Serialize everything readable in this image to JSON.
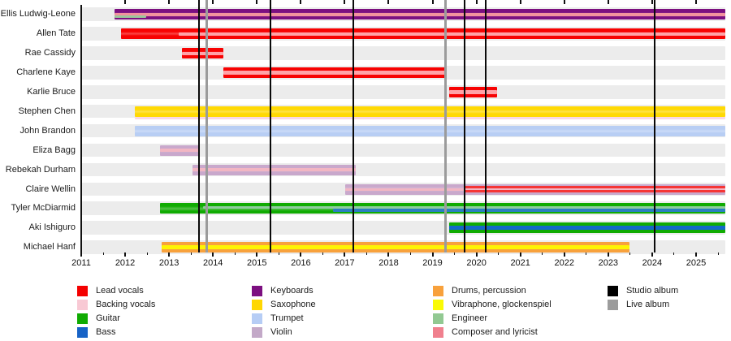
{
  "chart_data": {
    "type": "bar",
    "subtype": "band-membership-timeline",
    "title": "",
    "x_axis": {
      "min": 2011,
      "max": 2025.67,
      "year_labels": [
        2011,
        2012,
        2013,
        2014,
        2015,
        2016,
        2017,
        2018,
        2019,
        2020,
        2021,
        2022,
        2023,
        2024,
        2025
      ],
      "minor_tick_interval": 0.5,
      "grid": false
    },
    "albums": {
      "studio_years": [
        2013.68,
        2015.31,
        2017.2,
        2019.73,
        2020.21,
        2024.06
      ],
      "live_years": [
        2013.85,
        2019.29
      ],
      "studio_color": "#0a0a0a",
      "live_color": "#9b9b9b"
    },
    "members": [
      {
        "name": "Ellis Ludwig-Leone",
        "bars": [
          {
            "role": "Keyboards",
            "color": "#7c0f80",
            "start": 2011.76,
            "end": 2025.67,
            "kind": "main"
          },
          {
            "role": "Composer and lyricist",
            "color": "#f2929e",
            "start": 2011.76,
            "end": 2025.67,
            "kind": "mid"
          },
          {
            "role": "Engineer",
            "color": "#9cc79b",
            "start": 2011.76,
            "end": 2012.48,
            "kind": "lower"
          }
        ]
      },
      {
        "name": "Allen Tate",
        "bars": [
          {
            "role": "Lead vocals",
            "color": "#f70202",
            "start": 2011.91,
            "end": 2025.67,
            "kind": "main"
          },
          {
            "role": "Backing vocals",
            "color": "#ffa2a7",
            "start": 2013.22,
            "end": 2025.67,
            "kind": "mid"
          }
        ]
      },
      {
        "name": "Rae Cassidy",
        "bars": [
          {
            "role": "Lead vocals",
            "color": "#f70202",
            "start": 2013.29,
            "end": 2014.24,
            "kind": "main"
          },
          {
            "role": "Backing vocals",
            "color": "#ffa2a7",
            "start": 2013.29,
            "end": 2014.24,
            "kind": "mid"
          }
        ]
      },
      {
        "name": "Charlene Kaye",
        "bars": [
          {
            "role": "Lead vocals",
            "color": "#f70202",
            "start": 2014.24,
            "end": 2019.32,
            "kind": "main"
          },
          {
            "role": "Backing vocals",
            "color": "#ffa2a7",
            "start": 2014.24,
            "end": 2019.32,
            "kind": "mid"
          }
        ]
      },
      {
        "name": "Karlie Bruce",
        "bars": [
          {
            "role": "Lead vocals",
            "color": "#f70202",
            "start": 2019.38,
            "end": 2020.47,
            "kind": "main"
          },
          {
            "role": "Backing vocals",
            "color": "#ffa2a7",
            "start": 2019.38,
            "end": 2020.47,
            "kind": "mid"
          }
        ]
      },
      {
        "name": "Stephen Chen",
        "bars": [
          {
            "role": "Saxophone",
            "color": "#ffd903",
            "start": 2012.22,
            "end": 2025.67,
            "kind": "main"
          },
          {
            "role": "Backing vocals",
            "color": "#f9d7e2",
            "start": 2012.22,
            "end": 2025.67,
            "kind": "under"
          }
        ]
      },
      {
        "name": "John Brandon",
        "bars": [
          {
            "role": "Trumpet",
            "color": "#b8cef4",
            "start": 2012.22,
            "end": 2025.67,
            "kind": "main"
          }
        ]
      },
      {
        "name": "Eliza Bagg",
        "bars": [
          {
            "role": "Violin",
            "color": "#c9a8cc",
            "start": 2012.79,
            "end": 2013.68,
            "kind": "main"
          },
          {
            "role": "Backing vocals",
            "color": "#f2b6c3",
            "start": 2012.79,
            "end": 2013.68,
            "kind": "mid"
          }
        ]
      },
      {
        "name": "Rebekah Durham",
        "bars": [
          {
            "role": "Violin",
            "color": "#c9a8cc",
            "start": 2013.53,
            "end": 2017.25,
            "kind": "main"
          },
          {
            "role": "Backing vocals",
            "color": "#f2b6c3",
            "start": 2013.53,
            "end": 2017.25,
            "kind": "mid"
          }
        ]
      },
      {
        "name": "Claire Wellin",
        "bars": [
          {
            "role": "Violin",
            "color": "#c9a8cc",
            "start": 2017.01,
            "end": 2025.67,
            "kind": "main"
          },
          {
            "role": "Backing vocals",
            "color": "#f2b6c3",
            "start": 2017.01,
            "end": 2025.67,
            "kind": "mid-pink"
          },
          {
            "role": "Lead vocals",
            "color": "#f53535",
            "start": 2019.73,
            "end": 2025.67,
            "kind": "upper-red"
          },
          {
            "role": "Lead vocals",
            "color": "#f53535",
            "start": 2019.73,
            "end": 2025.67,
            "kind": "lower-red"
          }
        ]
      },
      {
        "name": "Tyler McDiarmid",
        "bars": [
          {
            "role": "Guitar",
            "color": "#10ab02",
            "start": 2012.79,
            "end": 2025.67,
            "kind": "main"
          },
          {
            "role": "Engineer",
            "color": "#8ecc9d",
            "start": 2013.77,
            "end": 2025.67,
            "kind": "upper-mid"
          },
          {
            "role": "Bass",
            "color": "#2a7fc0",
            "start": 2016.73,
            "end": 2025.67,
            "kind": "lower-mid"
          }
        ]
      },
      {
        "name": "Aki Ishiguro",
        "bars": [
          {
            "role": "Guitar",
            "color": "#10ab02",
            "start": 2019.38,
            "end": 2025.67,
            "kind": "main"
          },
          {
            "role": "Bass",
            "color": "#1468c8",
            "start": 2019.38,
            "end": 2025.67,
            "kind": "mid-wide"
          }
        ]
      },
      {
        "name": "Michael Hanf",
        "bars": [
          {
            "role": "Drums, percussion",
            "color": "#f8a13c",
            "start": 2012.83,
            "end": 2023.48,
            "kind": "main"
          },
          {
            "role": "Vibraphone, glockenspiel",
            "color": "#fdf403",
            "start": 2012.83,
            "end": 2023.48,
            "kind": "mid-wide"
          }
        ]
      }
    ],
    "legend": {
      "columns": [
        [
          {
            "label": "Lead vocals",
            "color": "#f40000"
          },
          {
            "label": "Backing vocals",
            "color": "#f8c9d4"
          },
          {
            "label": "Guitar",
            "color": "#10ab02"
          },
          {
            "label": "Bass",
            "color": "#1763c6"
          }
        ],
        [
          {
            "label": "Keyboards",
            "color": "#7c0f80"
          },
          {
            "label": "Saxophone",
            "color": "#ffd702"
          },
          {
            "label": "Trumpet",
            "color": "#b6cdf5"
          },
          {
            "label": "Violin",
            "color": "#c3a9c8"
          }
        ],
        [
          {
            "label": "Drums, percussion",
            "color": "#f8a13c"
          },
          {
            "label": "Vibraphone, glockenspiel",
            "color": "#fafa05"
          },
          {
            "label": "Engineer",
            "color": "#92c992"
          },
          {
            "label": "Composer and lyricist",
            "color": "#f0808e"
          }
        ],
        [
          {
            "label": "Studio album",
            "color": "#000000"
          },
          {
            "label": "Live album",
            "color": "#9c9c9c"
          }
        ]
      ]
    }
  }
}
